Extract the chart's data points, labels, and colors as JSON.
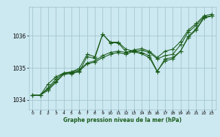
{
  "background_color": "#cce8f0",
  "plot_bg_color": "#cce8f0",
  "grid_color": "#9bbec8",
  "line_color": "#1a5c1a",
  "xlabel": "Graphe pression niveau de la mer (hPa)",
  "xlim": [
    -0.5,
    23.5
  ],
  "ylim": [
    1033.7,
    1036.9
  ],
  "yticks": [
    1034,
    1035,
    1036
  ],
  "xticks": [
    0,
    1,
    2,
    3,
    4,
    5,
    6,
    7,
    8,
    9,
    10,
    11,
    12,
    13,
    14,
    15,
    16,
    17,
    18,
    19,
    20,
    21,
    22,
    23
  ],
  "series": [
    [
      1034.15,
      1034.15,
      1034.3,
      1034.55,
      1034.8,
      1034.82,
      1034.88,
      1035.35,
      1035.3,
      1036.05,
      1035.8,
      1035.8,
      1035.58,
      1035.52,
      1035.48,
      1035.38,
      1034.9,
      1035.22,
      1035.28,
      1035.52,
      1035.98,
      1036.22,
      1036.55,
      1036.62
    ],
    [
      1034.15,
      1034.15,
      1034.35,
      1034.58,
      1034.82,
      1034.84,
      1034.9,
      1035.12,
      1035.18,
      1035.32,
      1035.42,
      1035.48,
      1035.42,
      1035.52,
      1035.55,
      1035.48,
      1035.28,
      1035.38,
      1035.42,
      1035.72,
      1036.12,
      1036.32,
      1036.58,
      1036.62
    ],
    [
      1034.15,
      1034.15,
      1034.38,
      1034.65,
      1034.84,
      1034.86,
      1034.94,
      1035.15,
      1035.22,
      1035.38,
      1035.48,
      1035.52,
      1035.48,
      1035.56,
      1035.6,
      1035.52,
      1035.32,
      1035.52,
      1035.58,
      1035.82,
      1036.18,
      1036.38,
      1036.62,
      1036.67
    ],
    [
      1034.15,
      1034.15,
      1034.5,
      1034.72,
      1034.84,
      1034.88,
      1034.98,
      1035.42,
      1035.35,
      1036.05,
      1035.78,
      1035.78,
      1035.5,
      1035.5,
      1035.44,
      1035.32,
      1034.88,
      1035.28,
      1035.32,
      1035.52,
      1035.95,
      1036.18,
      1036.55,
      1036.62
    ]
  ],
  "marker": "+",
  "markersize": 4,
  "linewidth": 0.8
}
